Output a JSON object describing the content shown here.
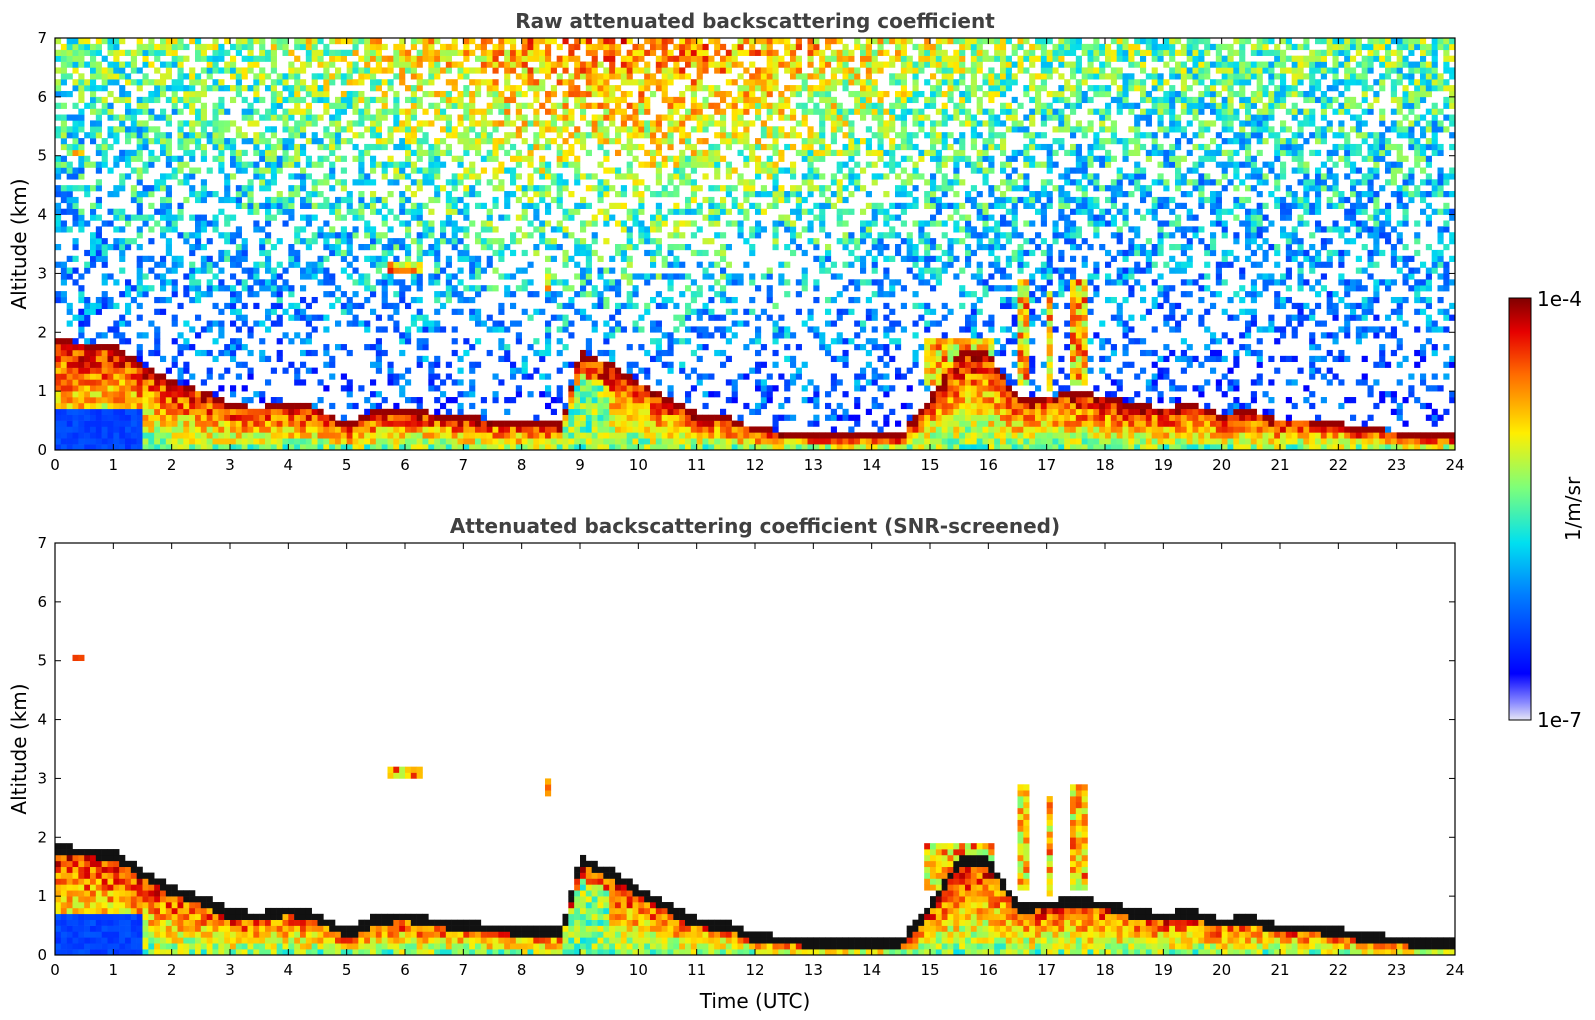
{
  "chart_data": [
    {
      "type": "heatmap",
      "title": "Raw attenuated backscattering coefficient",
      "ylabel": "Altitude (km)",
      "xlabel": "",
      "xlim": [
        0,
        24
      ],
      "ylim": [
        0,
        7
      ],
      "xticks": [
        "0",
        "1",
        "2",
        "3",
        "4",
        "5",
        "6",
        "7",
        "8",
        "9",
        "10",
        "11",
        "12",
        "13",
        "14",
        "15",
        "16",
        "17",
        "18",
        "19",
        "20",
        "21",
        "22",
        "23",
        "24"
      ],
      "yticks": [
        "0",
        "1",
        "2",
        "3",
        "4",
        "5",
        "6",
        "7"
      ],
      "screened": false
    },
    {
      "type": "heatmap",
      "title": "Attenuated backscattering coefficient (SNR-screened)",
      "ylabel": "Altitude (km)",
      "xlabel": "Time (UTC)",
      "xlim": [
        0,
        24
      ],
      "ylim": [
        0,
        7
      ],
      "xticks": [
        "0",
        "1",
        "2",
        "3",
        "4",
        "5",
        "6",
        "7",
        "8",
        "9",
        "10",
        "11",
        "12",
        "13",
        "14",
        "15",
        "16",
        "17",
        "18",
        "19",
        "20",
        "21",
        "22",
        "23",
        "24"
      ],
      "yticks": [
        "0",
        "1",
        "2",
        "3",
        "4",
        "5",
        "6",
        "7"
      ],
      "screened": true
    }
  ],
  "colorbar": {
    "label": "1/m/sr",
    "max_label": "1e-4",
    "min_label": "1e-7",
    "colormap": "jet"
  },
  "boundary_layer": {
    "time_utc": [
      0,
      0.5,
      1,
      1.5,
      2,
      2.5,
      3,
      3.5,
      4,
      4.5,
      5,
      5.5,
      6,
      6.5,
      7,
      7.5,
      8,
      8.5,
      8.7,
      9,
      9.5,
      10,
      10.5,
      11,
      11.5,
      12,
      12.5,
      13,
      13.5,
      14,
      14.5,
      15,
      15.5,
      16,
      16.5,
      17,
      17.5,
      18,
      18.5,
      19,
      19.5,
      20,
      20.5,
      21,
      21.5,
      22,
      22.5,
      23,
      23.5,
      24
    ],
    "top_km": [
      1.8,
      1.75,
      1.7,
      1.4,
      1.1,
      0.95,
      0.7,
      0.65,
      0.75,
      0.65,
      0.35,
      0.6,
      0.65,
      0.55,
      0.5,
      0.45,
      0.42,
      0.4,
      0.4,
      1.6,
      1.4,
      1.1,
      0.8,
      0.55,
      0.5,
      0.3,
      0.25,
      0.22,
      0.2,
      0.2,
      0.2,
      0.8,
      1.6,
      1.6,
      0.8,
      0.85,
      0.9,
      0.85,
      0.7,
      0.65,
      0.7,
      0.55,
      0.6,
      0.45,
      0.45,
      0.4,
      0.3,
      0.25,
      0.2,
      0.2
    ]
  }
}
